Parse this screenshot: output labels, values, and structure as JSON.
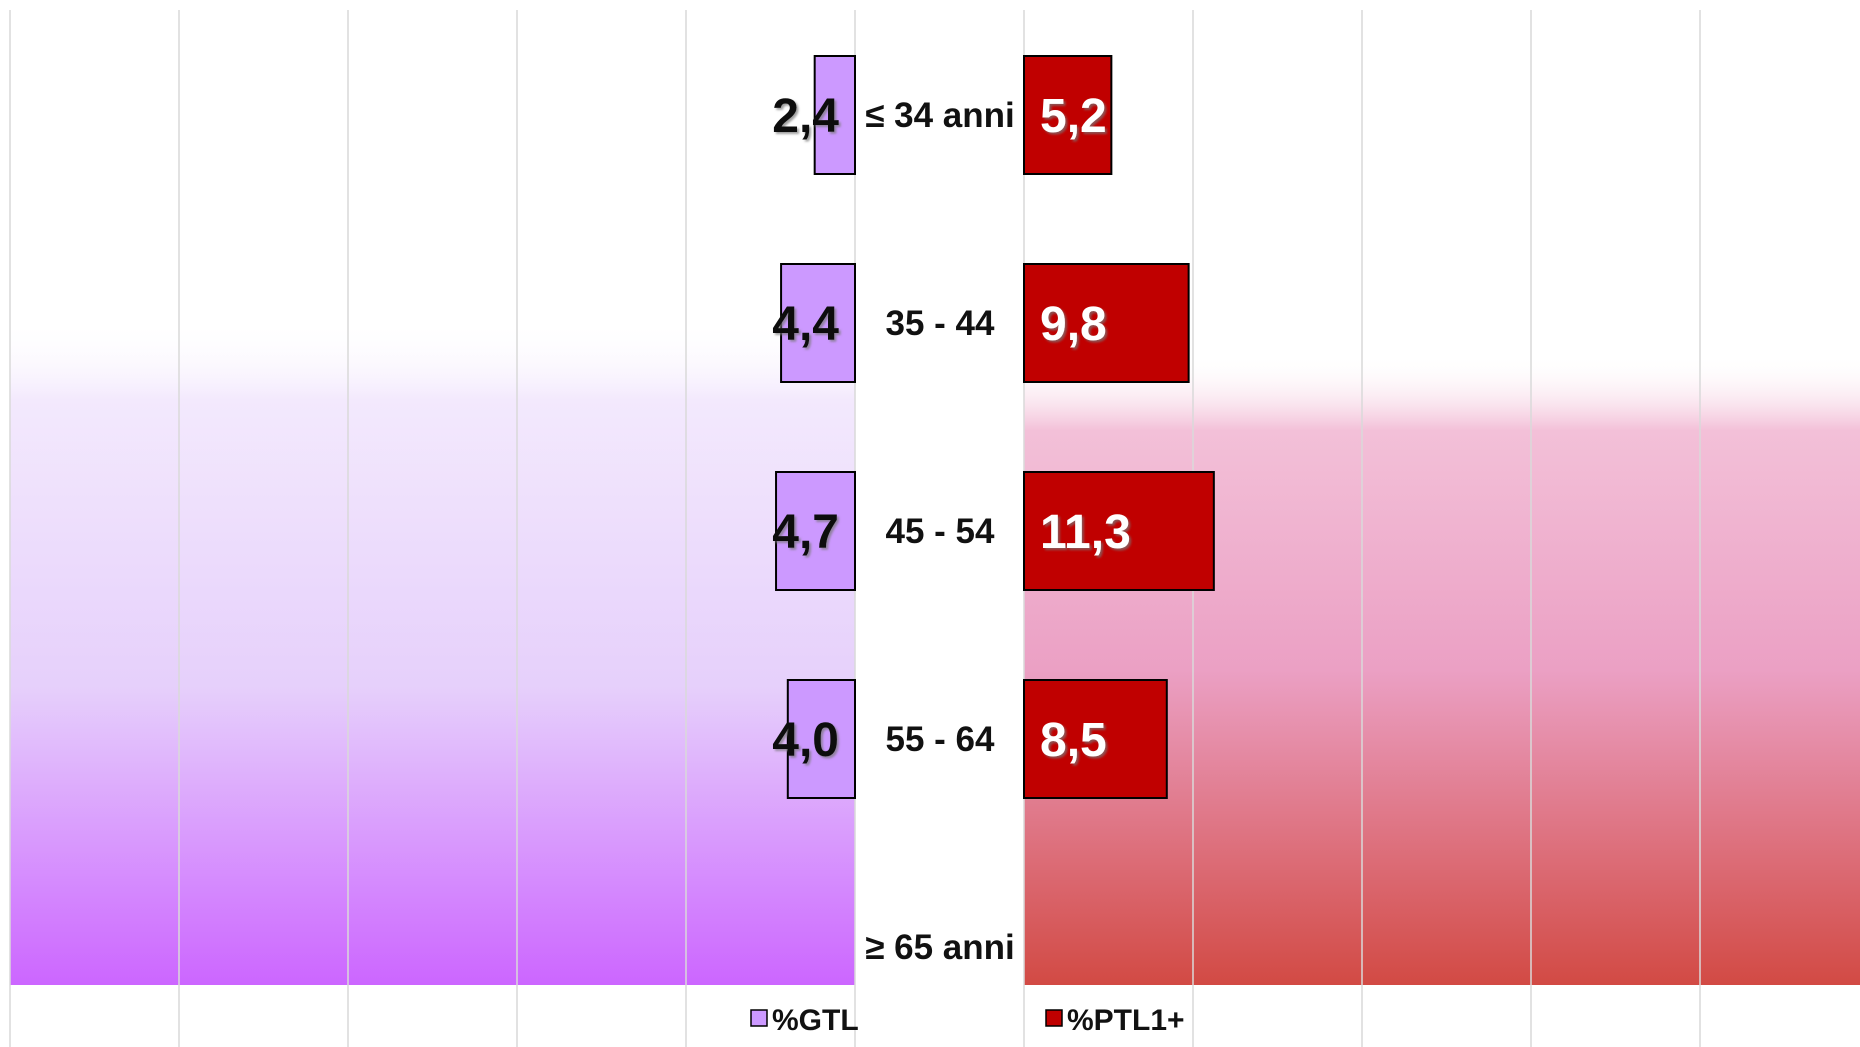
{
  "chart_data": {
    "type": "bar",
    "orientation": "horizontal-butterfly",
    "categories": [
      "≤ 34 anni",
      "35 - 44",
      "45 - 54",
      "55 - 64",
      "≥ 65 anni"
    ],
    "series": [
      {
        "name": "%GTL",
        "values": [
          2.4,
          4.4,
          4.7,
          4.0,
          0
        ],
        "labels": [
          "2,4",
          "4,4",
          "4,7",
          "4,0",
          ""
        ],
        "color": "#cc99ff",
        "side": "left"
      },
      {
        "name": "%PTL1+",
        "values": [
          5.2,
          9.8,
          11.3,
          8.5,
          0
        ],
        "labels": [
          "5,2",
          "9,8",
          "11,3",
          "8,5",
          ""
        ],
        "color": "#c00000",
        "side": "right"
      }
    ],
    "title": "",
    "xlabel": "",
    "ylabel": "",
    "legend": "bottom",
    "grid": true,
    "colors": {
      "left_gradient_top": "#f6eefd",
      "left_gradient_bottom": "#cc66ff",
      "right_gradient_top": "#f3c6dc",
      "right_gradient_bottom": "#d24a44"
    }
  }
}
